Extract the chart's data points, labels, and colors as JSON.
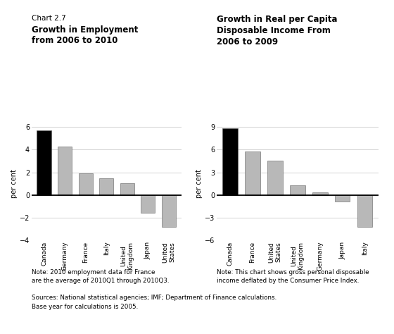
{
  "chart1_title_line1": "Chart 2.7",
  "chart1_title_bold1": "Growth in Employment",
  "chart1_title_bold2": "from 2006 to 2010",
  "chart2_title_bold1": "Growth in Real per Capita",
  "chart2_title_bold2": "Disposable Income From",
  "chart2_title_bold3": "2006 to 2009",
  "chart1_categories": [
    "Canada",
    "Germany",
    "France",
    "Italy",
    "United\nKingdom",
    "Japan",
    "United\nStates"
  ],
  "chart1_values": [
    5.7,
    4.3,
    1.9,
    1.45,
    1.05,
    -1.55,
    -2.8
  ],
  "chart1_colors": [
    "#000000",
    "#b8b8b8",
    "#b8b8b8",
    "#b8b8b8",
    "#b8b8b8",
    "#b8b8b8",
    "#b8b8b8"
  ],
  "chart1_ylim": [
    -4,
    6
  ],
  "chart1_yticks": [
    -4,
    -2,
    0,
    2,
    4,
    6
  ],
  "chart1_ylabel": "per cent",
  "chart2_categories": [
    "Canada",
    "France",
    "United\nStates",
    "United\nKingdom",
    "Germany",
    "Japan",
    "Italy"
  ],
  "chart2_values": [
    8.8,
    5.8,
    4.5,
    1.3,
    0.35,
    -0.85,
    -4.2
  ],
  "chart2_colors": [
    "#000000",
    "#b8b8b8",
    "#b8b8b8",
    "#b8b8b8",
    "#b8b8b8",
    "#b8b8b8",
    "#b8b8b8"
  ],
  "chart2_ylim": [
    -6,
    9
  ],
  "chart2_yticks": [
    -6,
    -3,
    0,
    3,
    6,
    9
  ],
  "chart2_ylabel": "per cent",
  "note1_line1": "Note: 2010 employment data for France",
  "note1_line2": "are the average of 2010Q1 through 2010Q3.",
  "note2_line1": "Sources: National statistical agencies; IMF; Department of Finance calculations.",
  "note2_line2": "Base year for calculations is 2005.",
  "note3_line1": "Note: This chart shows gross personal disposable",
  "note3_line2": "income deflated by the Consumer Price Index.",
  "bg_color": "#ffffff",
  "bar_edge_color": "#606060",
  "grid_color": "#cccccc",
  "zero_line_color": "#000000"
}
